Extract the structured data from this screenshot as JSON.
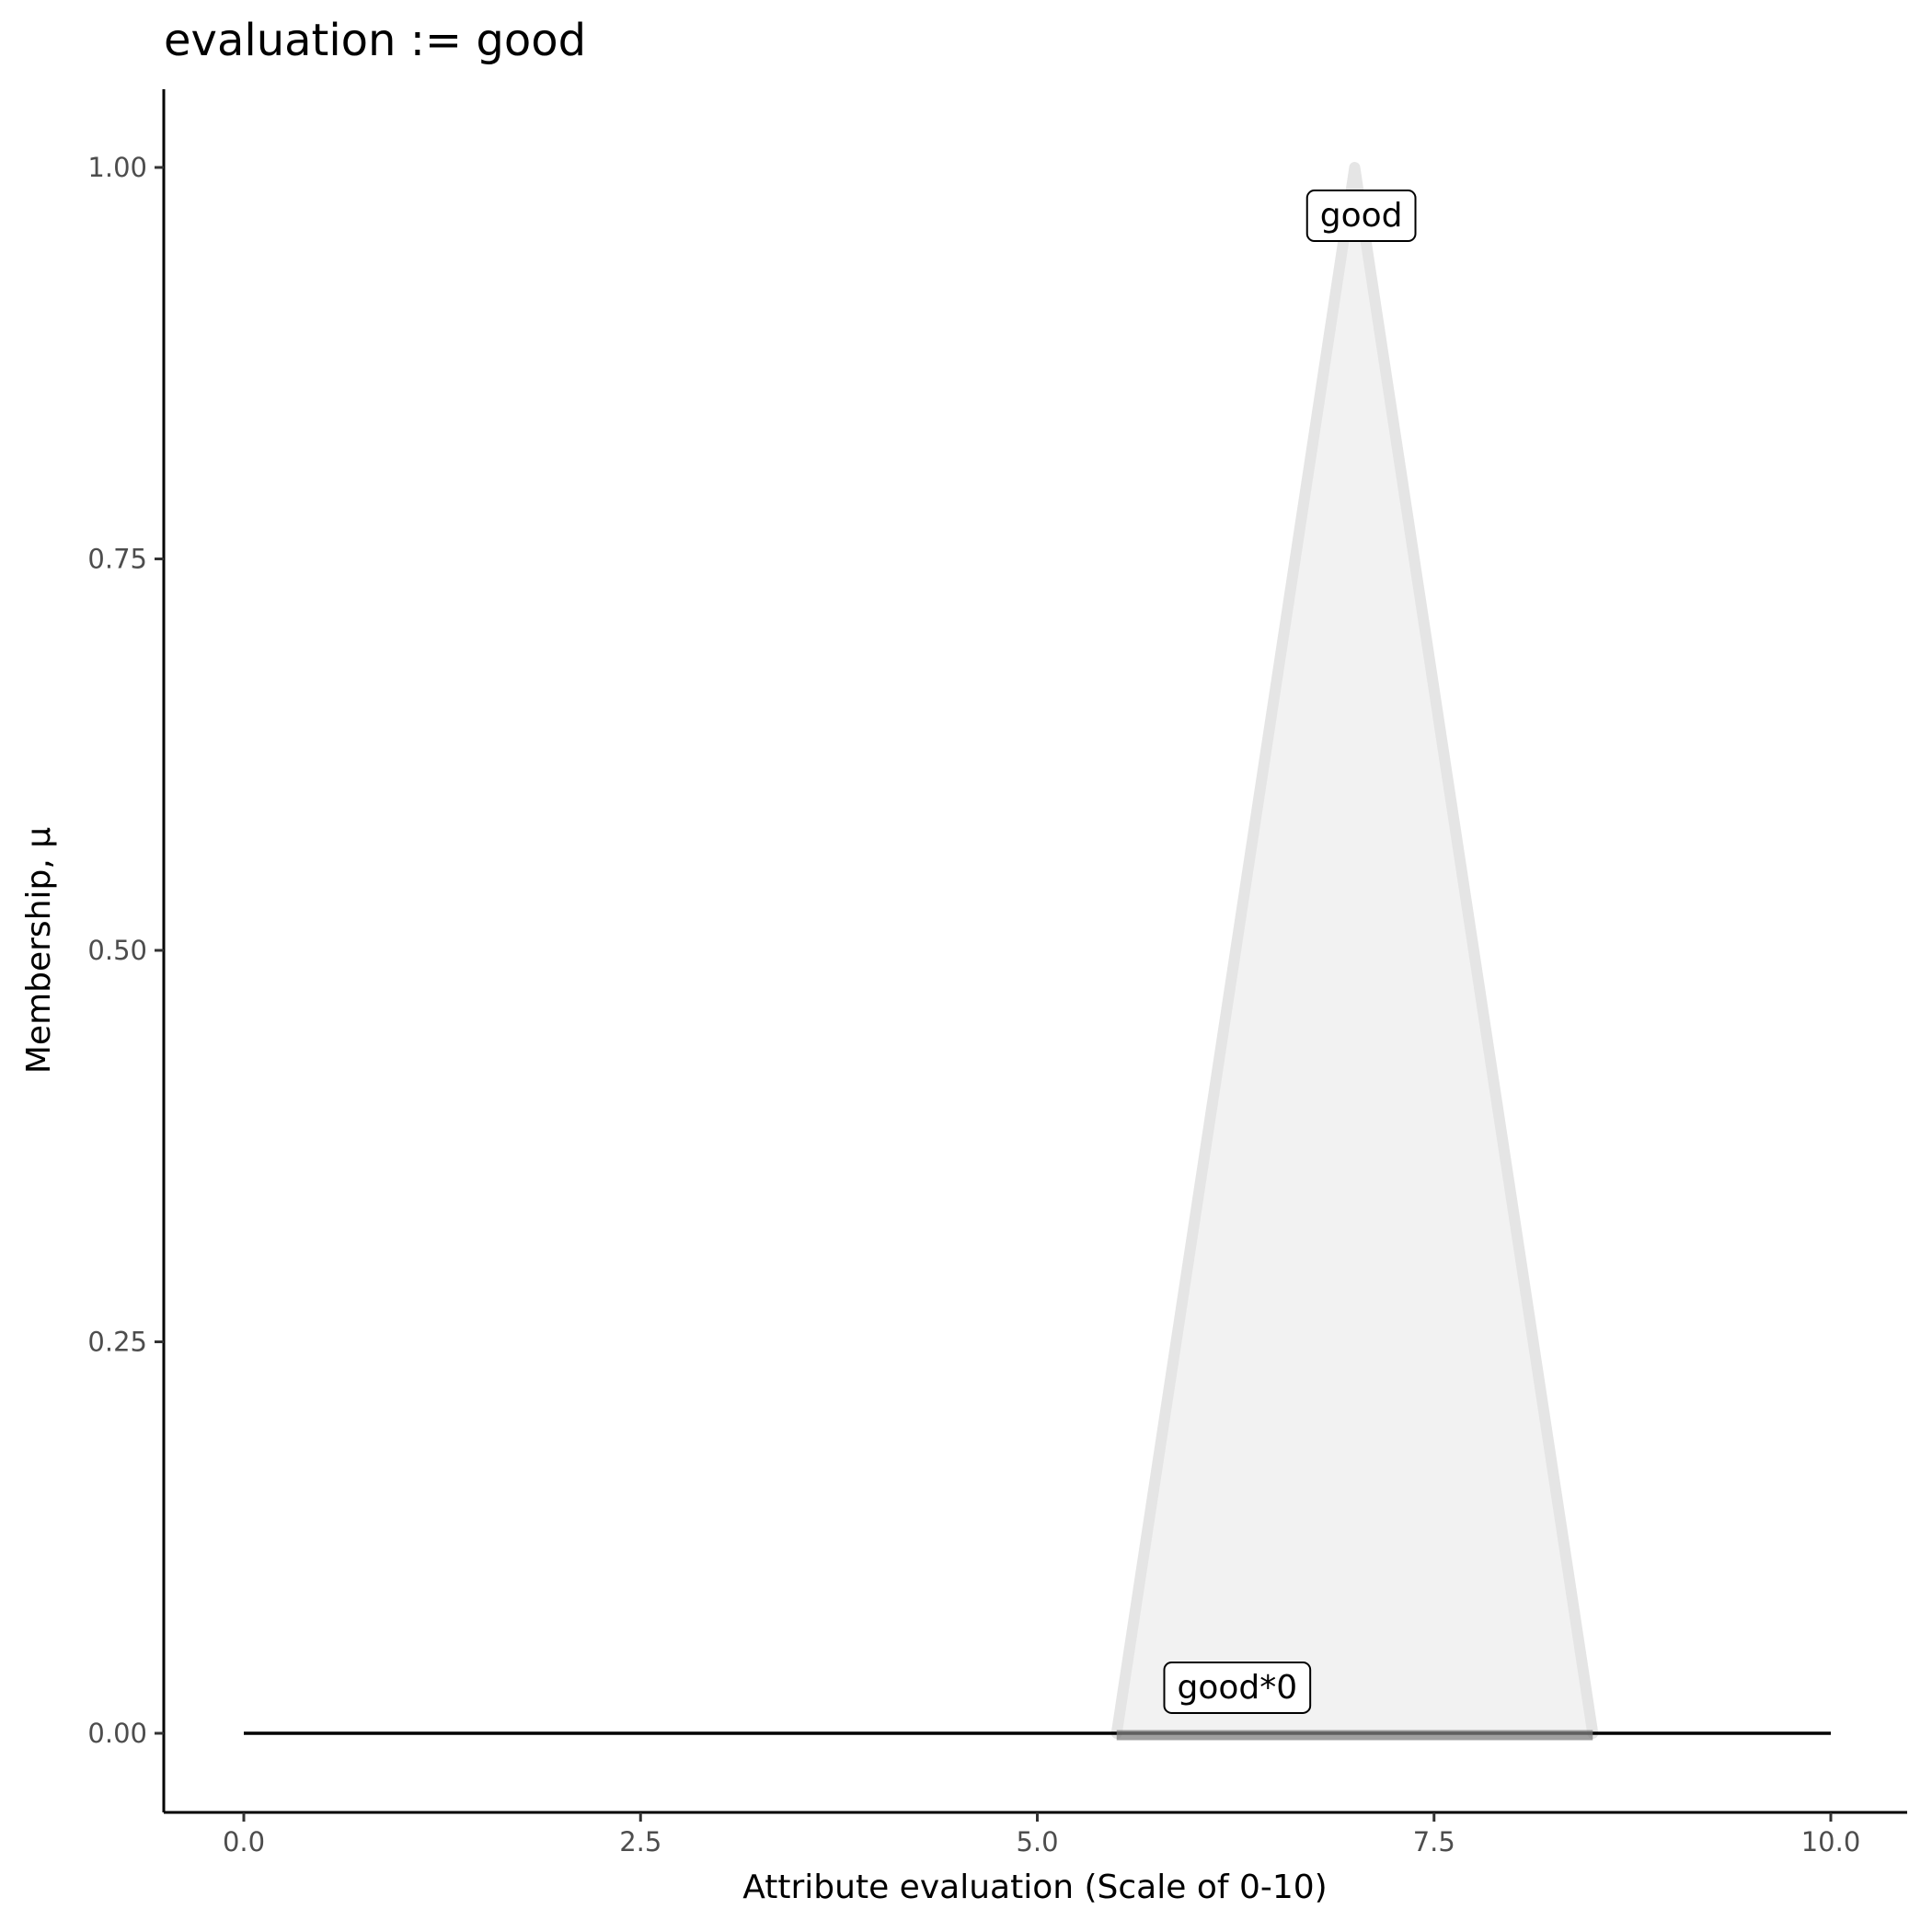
{
  "chart_data": {
    "type": "area",
    "title": "evaluation := good",
    "xlabel": "Attribute evaluation (Scale of 0-10)",
    "ylabel": "Membership, μ",
    "xlim": [
      -0.5,
      10.5
    ],
    "ylim": [
      -0.05,
      1.05
    ],
    "x_ticks": [
      "0.0",
      "2.5",
      "5.0",
      "7.5",
      "10.0"
    ],
    "y_ticks": [
      "0.00",
      "0.25",
      "0.50",
      "0.75",
      "1.00"
    ],
    "grid": false,
    "series": [
      {
        "name": "good",
        "x": [
          5.5,
          7,
          8.5
        ],
        "y": [
          0,
          1,
          0
        ],
        "fill": "#f2f2f2",
        "stroke": "#e5e5e5"
      },
      {
        "name": "good*0",
        "x": [
          5.5,
          8.5
        ],
        "y": [
          0,
          0
        ],
        "stroke": "#7f7f7f"
      }
    ],
    "baseline": {
      "x": [
        0,
        10
      ],
      "y": [
        0,
        0
      ],
      "stroke": "#000000"
    },
    "annotations": [
      {
        "text": "good",
        "x": 6.7,
        "y": 0.97
      },
      {
        "text": "good*0",
        "x": 5.8,
        "y": 0.03
      }
    ]
  }
}
